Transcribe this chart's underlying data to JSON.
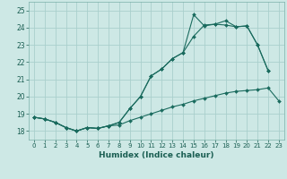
{
  "xlabel": "Humidex (Indice chaleur)",
  "bg_color": "#cde8e5",
  "grid_color": "#aacfcc",
  "line_color": "#1a6b5e",
  "xlim": [
    -0.5,
    23.5
  ],
  "ylim": [
    17.5,
    25.5
  ],
  "xticks": [
    0,
    1,
    2,
    3,
    4,
    5,
    6,
    7,
    8,
    9,
    10,
    11,
    12,
    13,
    14,
    15,
    16,
    17,
    18,
    19,
    20,
    21,
    22,
    23
  ],
  "yticks": [
    18,
    19,
    20,
    21,
    22,
    23,
    24,
    25
  ],
  "curve1_x": [
    0,
    1,
    2,
    3,
    4,
    5,
    6,
    7,
    8,
    9,
    10,
    11,
    12,
    13,
    14,
    15,
    16,
    17,
    18,
    19,
    20,
    21,
    22,
    23
  ],
  "curve1_y": [
    18.8,
    18.7,
    18.5,
    18.2,
    18.0,
    18.2,
    18.15,
    18.3,
    18.35,
    18.6,
    18.8,
    19.0,
    19.2,
    19.4,
    19.55,
    19.75,
    19.9,
    20.05,
    20.2,
    20.3,
    20.35,
    20.4,
    20.5,
    19.75
  ],
  "curve2_x": [
    0,
    1,
    2,
    3,
    4,
    5,
    6,
    7,
    8,
    9,
    10,
    11,
    12,
    13,
    14,
    15,
    16,
    17,
    18,
    19,
    20,
    21,
    22,
    23
  ],
  "curve2_y": [
    18.8,
    18.7,
    18.5,
    18.2,
    18.0,
    18.2,
    18.15,
    18.3,
    18.5,
    19.3,
    20.0,
    21.2,
    21.6,
    22.2,
    22.55,
    23.5,
    24.15,
    24.2,
    24.4,
    24.05,
    24.1,
    23.0,
    21.5,
    null
  ],
  "curve3_x": [
    0,
    1,
    2,
    3,
    4,
    5,
    6,
    7,
    8,
    9,
    10,
    11,
    12,
    13,
    14,
    15,
    16,
    17,
    18,
    19,
    20,
    21,
    22,
    23
  ],
  "curve3_y": [
    18.8,
    18.7,
    18.5,
    18.2,
    18.0,
    18.2,
    18.15,
    18.3,
    18.5,
    19.3,
    20.0,
    21.2,
    21.6,
    22.2,
    22.55,
    24.75,
    24.1,
    24.2,
    24.15,
    24.05,
    24.1,
    23.0,
    21.5,
    null
  ]
}
